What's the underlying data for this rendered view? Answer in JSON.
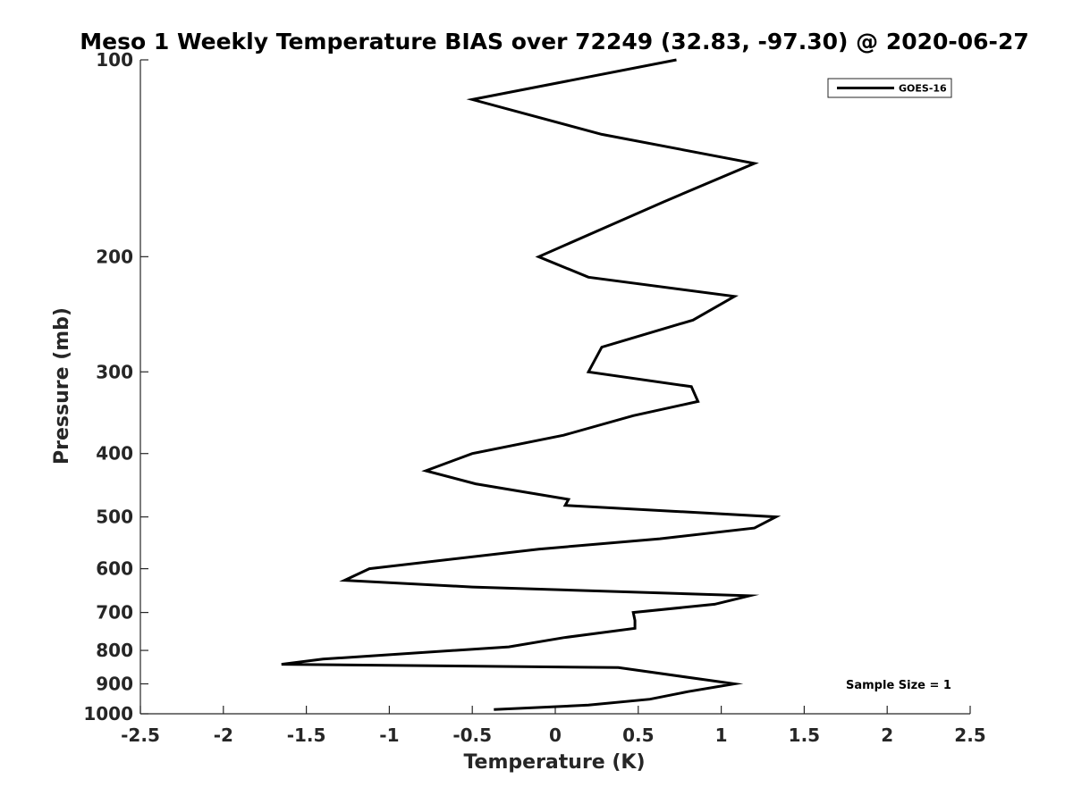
{
  "chart_data": {
    "type": "line",
    "title": "Meso 1 Weekly Temperature BIAS over 72249 (32.83, -97.30) @ 2020-06-27",
    "xlabel": "Temperature (K)",
    "ylabel": "Pressure (mb)",
    "xlim": [
      -2.5,
      2.5
    ],
    "ylim": [
      100,
      1000
    ],
    "y_scale": "log",
    "y_reversed": true,
    "x_ticks": [
      -2.5,
      -2,
      -1.5,
      -1,
      -0.5,
      0,
      0.5,
      1,
      1.5,
      2,
      2.5
    ],
    "x_tick_labels": [
      "-2.5",
      "-2",
      "-1.5",
      "-1",
      "-0.5",
      "0",
      "0.5",
      "1",
      "1.5",
      "2",
      "2.5"
    ],
    "y_ticks": [
      100,
      200,
      300,
      400,
      500,
      600,
      700,
      800,
      900,
      1000
    ],
    "y_tick_labels": [
      "100",
      "200",
      "300",
      "400",
      "500",
      "600",
      "700",
      "800",
      "900",
      "1000"
    ],
    "grid": false,
    "legend": {
      "position": "top-right",
      "entries": [
        "GOES-16"
      ]
    },
    "annotation": "Sample Size = 1",
    "series": [
      {
        "name": "GOES-16",
        "color": "#000000",
        "points": [
          {
            "x": 0.73,
            "p": 100
          },
          {
            "x": -0.5,
            "p": 115
          },
          {
            "x": 0.28,
            "p": 130
          },
          {
            "x": 1.2,
            "p": 144
          },
          {
            "x": 0.65,
            "p": 165
          },
          {
            "x": -0.1,
            "p": 200
          },
          {
            "x": 0.2,
            "p": 215
          },
          {
            "x": 1.08,
            "p": 230
          },
          {
            "x": 0.83,
            "p": 250
          },
          {
            "x": 0.28,
            "p": 275
          },
          {
            "x": 0.2,
            "p": 300
          },
          {
            "x": 0.82,
            "p": 316
          },
          {
            "x": 0.86,
            "p": 333
          },
          {
            "x": 0.47,
            "p": 350
          },
          {
            "x": 0.05,
            "p": 375
          },
          {
            "x": -0.5,
            "p": 400
          },
          {
            "x": -0.78,
            "p": 425
          },
          {
            "x": -0.48,
            "p": 445
          },
          {
            "x": 0.08,
            "p": 470
          },
          {
            "x": 0.06,
            "p": 480
          },
          {
            "x": 1.33,
            "p": 500
          },
          {
            "x": 1.2,
            "p": 520
          },
          {
            "x": 0.63,
            "p": 540
          },
          {
            "x": -0.1,
            "p": 560
          },
          {
            "x": -1.12,
            "p": 600
          },
          {
            "x": -1.27,
            "p": 625
          },
          {
            "x": -0.5,
            "p": 640
          },
          {
            "x": 1.17,
            "p": 660
          },
          {
            "x": 0.96,
            "p": 680
          },
          {
            "x": 0.47,
            "p": 700
          },
          {
            "x": 0.48,
            "p": 720
          },
          {
            "x": 0.48,
            "p": 740
          },
          {
            "x": 0.05,
            "p": 765
          },
          {
            "x": -0.28,
            "p": 790
          },
          {
            "x": -1.4,
            "p": 825
          },
          {
            "x": -1.65,
            "p": 840
          },
          {
            "x": 0.38,
            "p": 850
          },
          {
            "x": 1.08,
            "p": 900
          },
          {
            "x": 0.8,
            "p": 925
          },
          {
            "x": 0.57,
            "p": 950
          },
          {
            "x": 0.2,
            "p": 970
          },
          {
            "x": -0.37,
            "p": 985
          }
        ]
      }
    ]
  }
}
